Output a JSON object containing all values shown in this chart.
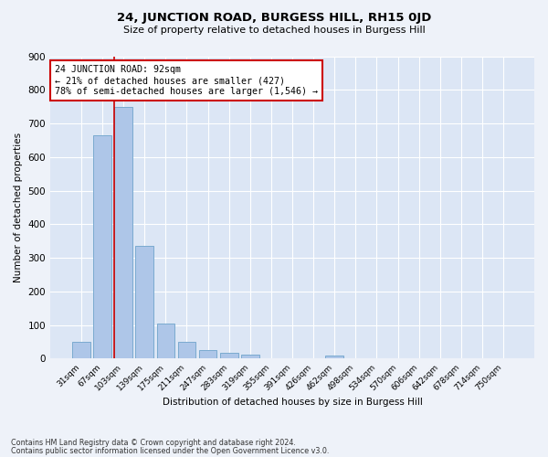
{
  "title": "24, JUNCTION ROAD, BURGESS HILL, RH15 0JD",
  "subtitle": "Size of property relative to detached houses in Burgess Hill",
  "xlabel": "Distribution of detached houses by size in Burgess Hill",
  "ylabel": "Number of detached properties",
  "bar_labels": [
    "31sqm",
    "67sqm",
    "103sqm",
    "139sqm",
    "175sqm",
    "211sqm",
    "247sqm",
    "283sqm",
    "319sqm",
    "355sqm",
    "391sqm",
    "426sqm",
    "462sqm",
    "498sqm",
    "534sqm",
    "570sqm",
    "606sqm",
    "642sqm",
    "678sqm",
    "714sqm",
    "750sqm"
  ],
  "bar_values": [
    50,
    665,
    748,
    335,
    105,
    50,
    27,
    17,
    13,
    0,
    0,
    0,
    10,
    0,
    0,
    0,
    0,
    0,
    0,
    0,
    0
  ],
  "bar_color": "#aec6e8",
  "bar_edge_color": "#7aaad0",
  "property_bin_index": 2,
  "annotation_text": "24 JUNCTION ROAD: 92sqm\n← 21% of detached houses are smaller (427)\n78% of semi-detached houses are larger (1,546) →",
  "annotation_box_color": "#ffffff",
  "annotation_box_edge_color": "#cc0000",
  "vline_color": "#cc0000",
  "ylim": [
    0,
    900
  ],
  "yticks": [
    0,
    100,
    200,
    300,
    400,
    500,
    600,
    700,
    800,
    900
  ],
  "footnote1": "Contains HM Land Registry data © Crown copyright and database right 2024.",
  "footnote2": "Contains public sector information licensed under the Open Government Licence v3.0.",
  "background_color": "#eef2f9",
  "plot_background": "#dce6f5"
}
